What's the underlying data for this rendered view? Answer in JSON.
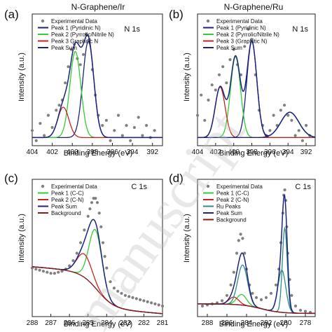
{
  "watermark": "manuscript",
  "chart_data": [
    {
      "type": "line",
      "panel_label": "(a)",
      "title": "N-Graphene/Ir",
      "core_level": "N 1s",
      "xlabel": "Binding Energy (eV)",
      "ylabel": "Intensity (a.u.)",
      "xlim": [
        404,
        391
      ],
      "xticks": [
        404,
        402,
        400,
        398,
        396,
        394,
        392
      ],
      "ylim": [
        0,
        1.3
      ],
      "legend_position": "top-left",
      "series": [
        {
          "name": "Experimental Data",
          "type": "scatter",
          "color": "#808080",
          "x": [
            404.0,
            403.6,
            403.2,
            402.8,
            402.4,
            402.0,
            401.6,
            401.3,
            401.0,
            400.7,
            400.4,
            400.1,
            399.8,
            399.5,
            399.2,
            398.9,
            398.6,
            398.3,
            398.0,
            397.7,
            397.4,
            397.0,
            396.6,
            396.2,
            395.8,
            395.4,
            395.0,
            394.6,
            394.2,
            393.8,
            393.4,
            393.0,
            392.6,
            392.2,
            391.8
          ],
          "y": [
            0.15,
            0.05,
            0.22,
            0.1,
            0.3,
            0.18,
            0.35,
            0.4,
            0.45,
            0.62,
            0.78,
            0.95,
            1.0,
            0.86,
            0.8,
            0.9,
            1.1,
            1.05,
            0.75,
            0.5,
            0.3,
            0.2,
            0.25,
            0.05,
            0.15,
            0.3,
            0.1,
            0.2,
            0.05,
            0.18,
            0.28,
            0.1,
            0.2,
            0.08,
            0.15
          ]
        },
        {
          "name": "Peak 1 (Pyridinic N)",
          "type": "gauss",
          "color": "#1a237e",
          "center": 398.4,
          "amp": 0.95,
          "sigma": 0.55
        },
        {
          "name": "Peak 2 (Pyrrolic/Nitrile N)",
          "type": "gauss",
          "color": "#33cc33",
          "center": 399.7,
          "amp": 0.85,
          "sigma": 0.55
        },
        {
          "name": "Peak 3 Graphitic N",
          "type": "gauss",
          "color": "#cc2222",
          "center": 400.9,
          "amp": 0.3,
          "sigma": 0.55
        },
        {
          "name": "Peak Sum",
          "type": "sum",
          "color": "#1a237e"
        }
      ]
    },
    {
      "type": "line",
      "panel_label": "(b)",
      "title": "N-Graphene/Ru",
      "core_level": "N 1s",
      "xlabel": "Binding Energy (eV)",
      "ylabel": "Intensity (a.u.)",
      "xlim": [
        404,
        391
      ],
      "xticks": [
        404,
        402,
        400,
        398,
        396,
        394,
        392
      ],
      "ylim": [
        0,
        1.3
      ],
      "legend_position": "top-left",
      "series": [
        {
          "name": "Experimental Data",
          "type": "scatter",
          "color": "#808080",
          "x": [
            404.0,
            403.6,
            403.2,
            402.8,
            402.4,
            402.0,
            401.6,
            401.2,
            400.8,
            400.4,
            400.0,
            399.6,
            399.2,
            398.8,
            398.4,
            398.0,
            397.6,
            397.2,
            396.8,
            396.4,
            396.0,
            395.6,
            395.2,
            394.8,
            394.4,
            394.0,
            393.6,
            393.2,
            392.8,
            392.4,
            392.0,
            391.6
          ],
          "y": [
            0.3,
            0.5,
            0.25,
            0.45,
            0.6,
            0.55,
            0.7,
            0.78,
            0.62,
            0.85,
            0.95,
            0.8,
            0.7,
            0.98,
            1.15,
            1.05,
            0.7,
            0.35,
            0.2,
            0.1,
            0.15,
            0.3,
            0.2,
            0.35,
            0.4,
            0.3,
            0.25,
            0.1,
            0.15,
            0.05,
            0.2,
            0.1
          ]
        },
        {
          "name": "Peak 1 (Pyridinic N)",
          "type": "gauss",
          "color": "#1a237e",
          "center": 398.0,
          "amp": 0.95,
          "sigma": 0.55
        },
        {
          "name": "Peak 2 (Pyrrolic/Nitrile N)",
          "type": "gauss",
          "color": "#33cc33",
          "center": 399.8,
          "amp": 0.8,
          "sigma": 0.55
        },
        {
          "name": "Peak 3 (Graphitic N)",
          "type": "gauss",
          "color": "#cc2222",
          "center": 401.5,
          "amp": 0.5,
          "sigma": 0.55
        },
        {
          "name": "Peak Sum",
          "type": "sum",
          "color": "#1a237e"
        }
      ],
      "extra_peaks": [
        {
          "color": "#1a237e",
          "center": 393.8,
          "amp": 0.25,
          "sigma": 1.0
        }
      ]
    },
    {
      "type": "line",
      "panel_label": "(c)",
      "title": "",
      "core_level": "C 1s",
      "xlabel": "Binding Energy (eV)",
      "ylabel": "Intensity (a.u.)",
      "xlim": [
        288,
        281
      ],
      "xticks": [
        288,
        287,
        286,
        285,
        284,
        283,
        282,
        281
      ],
      "ylim": [
        0,
        1.3
      ],
      "legend_position": "top-left",
      "series": [
        {
          "name": "Experimental Data",
          "type": "scatter",
          "color": "#808080",
          "x": [
            288.0,
            287.8,
            287.6,
            287.4,
            287.2,
            287.0,
            286.8,
            286.6,
            286.4,
            286.2,
            286.0,
            285.8,
            285.6,
            285.4,
            285.2,
            285.0,
            284.9,
            284.8,
            284.7,
            284.6,
            284.5,
            284.4,
            284.3,
            284.2,
            284.1,
            284.0,
            283.8,
            283.6,
            283.4,
            283.2,
            283.0,
            282.8,
            282.6,
            282.4,
            282.2,
            282.0,
            281.8,
            281.6,
            281.4,
            281.2,
            281.0
          ],
          "y": [
            0.46,
            0.45,
            0.44,
            0.43,
            0.42,
            0.41,
            0.41,
            0.42,
            0.43,
            0.45,
            0.48,
            0.53,
            0.6,
            0.7,
            0.82,
            0.95,
            1.02,
            1.08,
            1.12,
            1.12,
            1.08,
            0.98,
            0.85,
            0.7,
            0.57,
            0.46,
            0.33,
            0.27,
            0.24,
            0.22,
            0.2,
            0.19,
            0.18,
            0.17,
            0.16,
            0.15,
            0.14,
            0.13,
            0.12,
            0.11,
            0.1
          ]
        },
        {
          "name": "Peak 1 (C-C)",
          "type": "gauss",
          "color": "#33cc33",
          "center": 284.6,
          "amp": 0.55,
          "sigma": 0.35
        },
        {
          "name": "Peak 2 (C-N)",
          "type": "gauss",
          "color": "#cc2222",
          "center": 285.2,
          "amp": 0.22,
          "sigma": 0.4
        },
        {
          "name": "Peak Sum",
          "type": "sum",
          "color": "#1a237e"
        },
        {
          "name": "Background",
          "type": "background",
          "color": "#8b1a1a"
        }
      ]
    },
    {
      "type": "line",
      "panel_label": "(d)",
      "title": "",
      "core_level": "C 1s",
      "xlabel": "Binding Energy (eV)",
      "ylabel": "Intensity (a.u.)",
      "xlim": [
        289,
        277
      ],
      "xticks": [
        288,
        286,
        284,
        282,
        280,
        278
      ],
      "ylim": [
        0,
        1.3
      ],
      "legend_position": "top-left",
      "series": [
        {
          "name": "Experimental Data",
          "type": "scatter",
          "color": "#808080",
          "x": [
            288.5,
            288.0,
            287.5,
            287.0,
            286.5,
            286.0,
            285.6,
            285.3,
            285.0,
            284.8,
            284.6,
            284.4,
            284.2,
            284.0,
            283.7,
            283.4,
            283.0,
            282.5,
            282.0,
            281.5,
            281.0,
            280.7,
            280.5,
            280.3,
            280.2,
            280.1,
            280.0,
            279.9,
            279.8,
            279.6,
            279.4,
            279.0,
            278.5,
            278.0,
            277.5
          ],
          "y": [
            0.1,
            0.11,
            0.12,
            0.13,
            0.15,
            0.2,
            0.3,
            0.42,
            0.6,
            0.72,
            0.78,
            0.74,
            0.6,
            0.45,
            0.3,
            0.22,
            0.18,
            0.16,
            0.18,
            0.22,
            0.3,
            0.45,
            0.7,
            0.98,
            1.15,
            1.2,
            1.1,
            0.85,
            0.6,
            0.35,
            0.2,
            0.1,
            0.06,
            0.05,
            0.04
          ]
        },
        {
          "name": "Peak 1 (C-C)",
          "type": "gauss",
          "color": "#33cc33",
          "center": 284.5,
          "amp": 0.1,
          "sigma": 0.5
        },
        {
          "name": "Peak 2 (C-N)",
          "type": "gauss",
          "color": "#cc2222",
          "center": 285.3,
          "amp": 0.07,
          "sigma": 0.5
        },
        {
          "name": "Ru Peaks",
          "type": "gauss_multi",
          "color": "#2e8b8b",
          "peaks": [
            {
              "center": 284.4,
              "amp": 0.38,
              "sigma": 0.5
            },
            {
              "center": 280.4,
              "amp": 0.4,
              "sigma": 0.4
            },
            {
              "center": 280.1,
              "amp": 0.8,
              "sigma": 0.25
            }
          ]
        },
        {
          "name": "Peak Sum",
          "type": "sum",
          "color": "#1a237e"
        },
        {
          "name": "Background",
          "type": "background",
          "color": "#8b1a1a"
        }
      ]
    }
  ]
}
